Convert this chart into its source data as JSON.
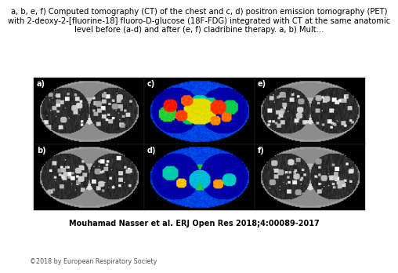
{
  "title_line1": "a, b, e, f) Computed tomography (CT) of the chest and c, d) positron emission tomography (PET)",
  "title_line2": "with 2-deoxy-2-[fluorine-18] fluoro-D-glucose (18F-FDG) integrated with CT at the same anatomic",
  "title_line3": "level before (a-d) and after (e, f) cladribine therapy. a, b) Mult...",
  "citation": "Mouhamad Nasser et al. ERJ Open Res 2018;4:00089-2017",
  "copyright": "©2018 by European Respiratory Society",
  "bg_color": "#ffffff",
  "title_fontsize": 7.2,
  "citation_fontsize": 7.0,
  "copyright_fontsize": 5.8,
  "panel_label_color": "#ffffff",
  "panel_label_fontsize": 7
}
